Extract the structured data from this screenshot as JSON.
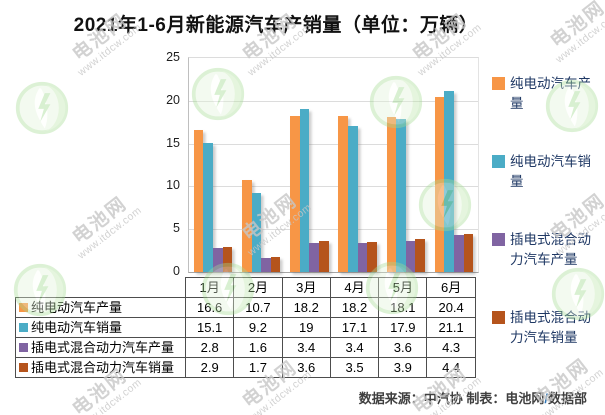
{
  "chart_data": {
    "type": "bar",
    "title": "2021年1-6月新能源汽车产销量（单位：万辆）",
    "unit": "万辆",
    "categories": [
      "1月",
      "2月",
      "3月",
      "4月",
      "5月",
      "6月"
    ],
    "series": [
      {
        "name": "纯电动汽车产量",
        "color": "#F79646",
        "values": [
          16.6,
          10.7,
          18.2,
          18.2,
          18.1,
          20.4
        ]
      },
      {
        "name": "纯电动汽车销量",
        "color": "#4BACC6",
        "values": [
          15.1,
          9.2,
          19,
          17.1,
          17.9,
          21.1
        ]
      },
      {
        "name": "插电式混合动力汽车产量",
        "color": "#8064A2",
        "values": [
          2.8,
          1.6,
          3.4,
          3.4,
          3.6,
          4.3
        ]
      },
      {
        "name": "插电式混合动力汽车销量",
        "color": "#B5541C",
        "values": [
          2.9,
          1.7,
          3.6,
          3.5,
          3.9,
          4.4
        ]
      }
    ],
    "ylim": [
      0,
      25
    ],
    "yticks": [
      0,
      5,
      10,
      15,
      20,
      25
    ],
    "grid": true,
    "legend_position": "right",
    "shows_data_table": true
  },
  "source_note": {
    "prefix": "数据来源：中汽协  制表：电池网",
    "slash": "/",
    "suffix": "数据部"
  },
  "watermark": {
    "brand": "电池网",
    "url": "www.itdcw.com"
  }
}
